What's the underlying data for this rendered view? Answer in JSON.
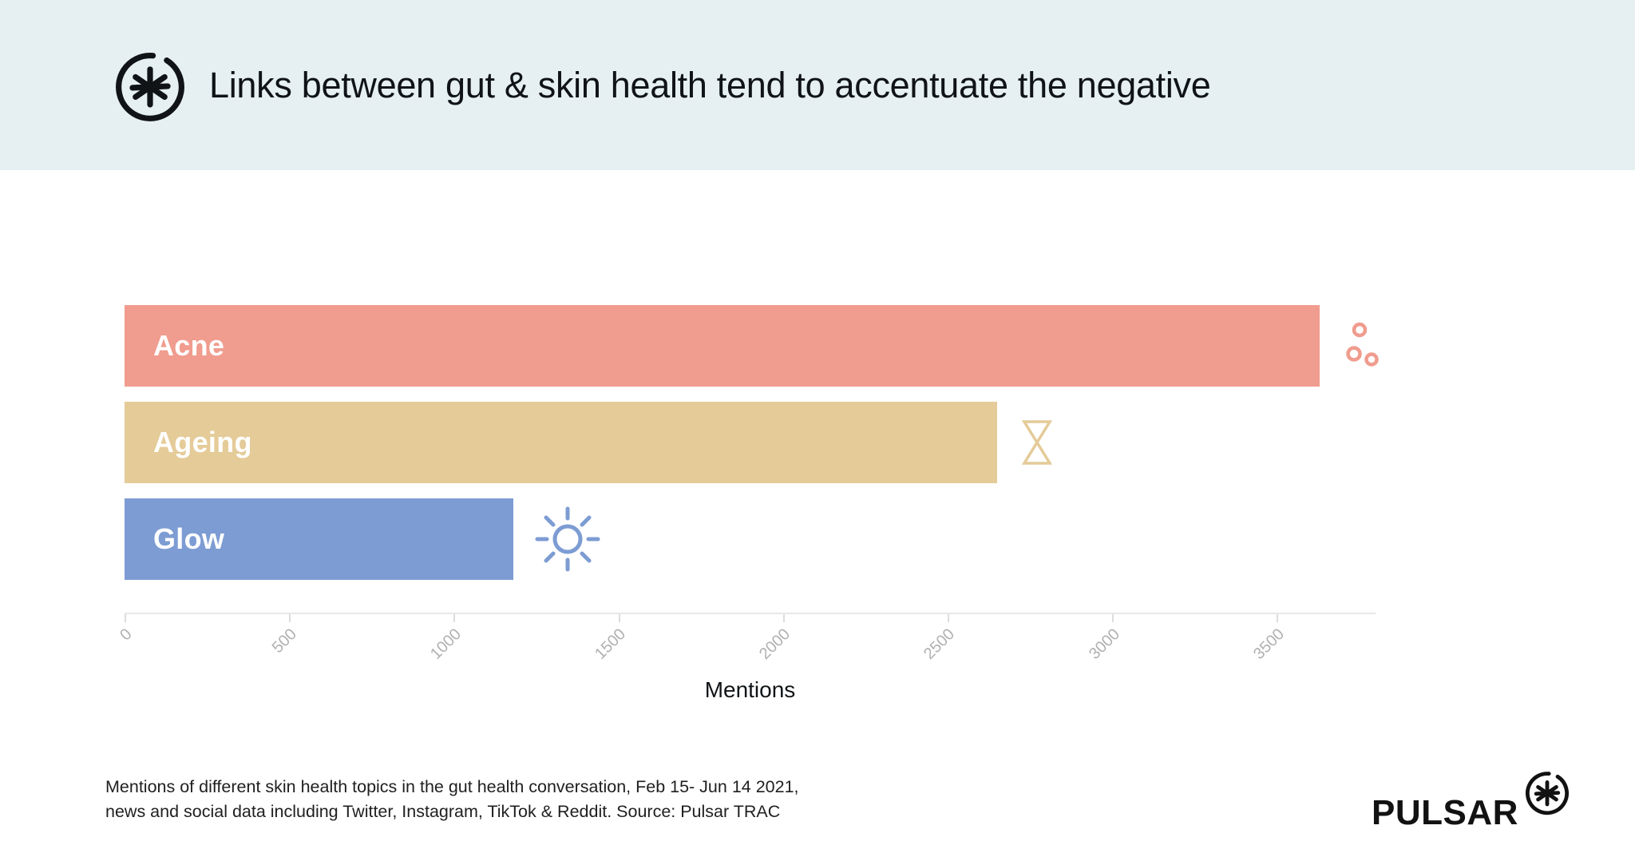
{
  "header": {
    "title": "Links between gut & skin health tend to accentuate the negative"
  },
  "colors": {
    "header-bg": "#e6f0f2",
    "ink": "#101417",
    "acne": "#f09c8e",
    "ageing": "#e4cb98",
    "glow": "#7d9cd3",
    "axis-line": "#e8e8e8",
    "tick": "#dcdcdc",
    "tick-label": "#b0b0b0"
  },
  "chart_data": {
    "type": "bar",
    "orientation": "horizontal",
    "title": "Links between gut & skin health tend to accentuate the negative",
    "categories": [
      "Acne",
      "Ageing",
      "Glow"
    ],
    "values": [
      3630,
      2650,
      1180
    ],
    "bar_colors": [
      "#f09c8e",
      "#e4cb98",
      "#7d9cd3"
    ],
    "bar_icons": [
      "acne-spots",
      "hourglass",
      "sun"
    ],
    "xlabel": "Mentions",
    "xlim": [
      0,
      3800
    ],
    "ticks": [
      0,
      500,
      1000,
      1500,
      2000,
      2500,
      3000,
      3500
    ],
    "grid": false,
    "legend": false
  },
  "footer": {
    "caption_lines": [
      "Mentions of different skin health topics in the gut health conversation, Feb 15- Jun 14 2021,",
      "news and social data including Twitter, Instagram, TikTok & Reddit. Source: Pulsar TRAC"
    ],
    "brand_name": "PULSAR"
  }
}
